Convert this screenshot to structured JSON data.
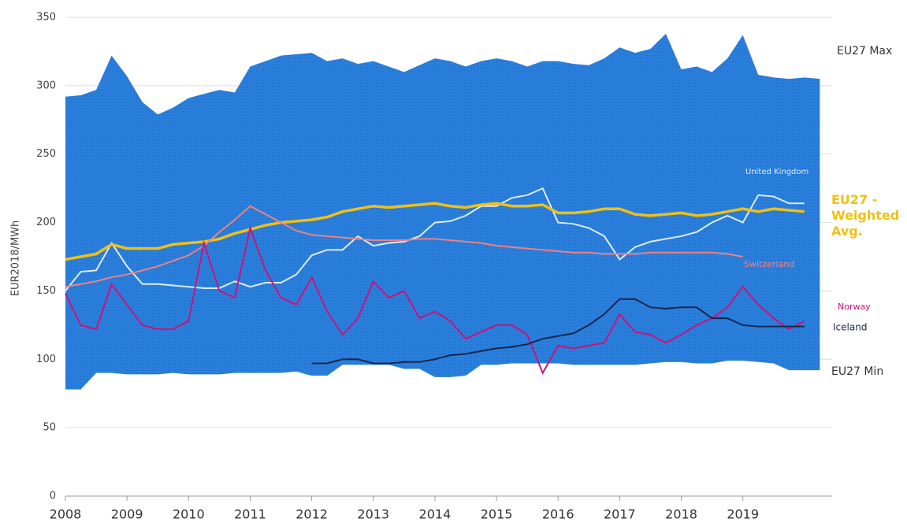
{
  "chart_data": {
    "type": "line",
    "y_label": "EUR2018/MWh",
    "xlim": [
      2008,
      2020.45
    ],
    "xticks": [
      2008,
      2009,
      2010,
      2011,
      2012,
      2013,
      2014,
      2015,
      2016,
      2017,
      2018,
      2019
    ],
    "ylim": [
      0,
      350
    ],
    "yticks": [
      0,
      50,
      100,
      150,
      200,
      250,
      300,
      350
    ],
    "grid": true,
    "x": [
      2008,
      2008.25,
      2008.5,
      2008.75,
      2009,
      2009.25,
      2009.5,
      2009.75,
      2010,
      2010.25,
      2010.5,
      2010.75,
      2011,
      2011.25,
      2011.5,
      2011.75,
      2012,
      2012.25,
      2012.5,
      2012.75,
      2013,
      2013.25,
      2013.5,
      2013.75,
      2014,
      2014.25,
      2014.5,
      2014.75,
      2015,
      2015.25,
      2015.5,
      2015.75,
      2016,
      2016.25,
      2016.5,
      2016.75,
      2017,
      2017.25,
      2017.5,
      2017.75,
      2018,
      2018.25,
      2018.5,
      2018.75,
      2019,
      2019.25,
      2019.5,
      2019.75,
      2020,
      2020.25
    ],
    "band": {
      "color": "#2a7fdc",
      "upper": {
        "name": "EU27 Max",
        "values": [
          292,
          293,
          297,
          322,
          307,
          288,
          279,
          284,
          291,
          294,
          297,
          295,
          314,
          318,
          322,
          323,
          324,
          318,
          320,
          316,
          318,
          314,
          310,
          315,
          320,
          318,
          314,
          318,
          320,
          318,
          314,
          318,
          318,
          316,
          315,
          320,
          328,
          324,
          327,
          338,
          312,
          314,
          310,
          320,
          337,
          308,
          306,
          305,
          306,
          305
        ]
      },
      "lower": {
        "name": "EU27 Min",
        "values": [
          78,
          78,
          90,
          90,
          89,
          89,
          89,
          90,
          89,
          89,
          89,
          90,
          90,
          90,
          90,
          91,
          88,
          88,
          96,
          96,
          96,
          96,
          93,
          93,
          87,
          87,
          88,
          96,
          96,
          97,
          97,
          97,
          97,
          96,
          96,
          96,
          96,
          96,
          97,
          98,
          98,
          97,
          97,
          99,
          99,
          98,
          97,
          92,
          92,
          92
        ]
      }
    },
    "series": [
      {
        "name": "United Kingdom",
        "color": "#dcecf8",
        "values": [
          150,
          164,
          165,
          185,
          168,
          155,
          155,
          154,
          153,
          152,
          152,
          157,
          153,
          156,
          156,
          162,
          176,
          180,
          180,
          190,
          183,
          185,
          186,
          190,
          200,
          201,
          205,
          212,
          212,
          218,
          220,
          225,
          200,
          199,
          196,
          190,
          173,
          182,
          186,
          188,
          190,
          193,
          200,
          205,
          200,
          220,
          219,
          214,
          214,
          null
        ]
      },
      {
        "name": "EU27 - Weighted Avg.",
        "color": "#f2c012",
        "values": [
          173,
          175,
          177,
          184,
          181,
          181,
          181,
          184,
          185,
          186,
          188,
          192,
          195,
          198,
          200,
          201,
          202,
          204,
          208,
          210,
          212,
          211,
          212,
          213,
          214,
          212,
          211,
          213,
          214,
          212,
          212,
          213,
          207,
          207,
          208,
          210,
          210,
          206,
          205,
          206,
          207,
          205,
          206,
          208,
          210,
          208,
          210,
          209,
          208,
          null
        ]
      },
      {
        "name": "Switzerland",
        "color": "#f08080",
        "values": [
          153,
          155,
          157,
          160,
          162,
          165,
          168,
          172,
          176,
          183,
          193,
          202,
          212,
          206,
          200,
          194,
          191,
          190,
          189,
          188,
          187,
          187,
          187,
          188,
          188,
          187,
          186,
          185,
          183,
          182,
          181,
          180,
          179,
          178,
          178,
          177,
          177,
          177,
          178,
          178,
          178,
          178,
          178,
          177,
          175,
          null,
          null,
          null,
          null,
          null
        ]
      },
      {
        "name": "Norway",
        "color": "#d0107a",
        "values": [
          148,
          125,
          122,
          155,
          140,
          125,
          122,
          122,
          128,
          185,
          150,
          145,
          196,
          165,
          145,
          140,
          160,
          135,
          118,
          130,
          157,
          145,
          150,
          130,
          135,
          128,
          115,
          120,
          125,
          125,
          118,
          90,
          110,
          108,
          110,
          112,
          133,
          120,
          118,
          112,
          118,
          125,
          130,
          138,
          153,
          140,
          130,
          122,
          128,
          null
        ]
      },
      {
        "name": "Iceland",
        "color": "#15264f",
        "values": [
          null,
          null,
          null,
          null,
          null,
          null,
          null,
          null,
          null,
          null,
          null,
          null,
          null,
          null,
          null,
          null,
          97,
          97,
          100,
          100,
          97,
          97,
          98,
          98,
          100,
          103,
          104,
          106,
          108,
          109,
          111,
          115,
          117,
          119,
          125,
          133,
          144,
          144,
          138,
          137,
          138,
          138,
          130,
          130,
          125,
          124,
          124,
          124,
          124,
          null
        ]
      }
    ]
  }
}
